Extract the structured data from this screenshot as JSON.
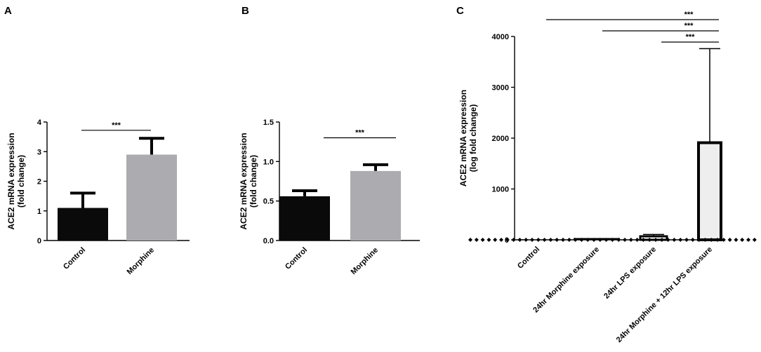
{
  "chart_data": [
    {
      "panel": "A",
      "type": "bar",
      "categories": [
        "Control",
        "Morphine"
      ],
      "values": [
        1.1,
        2.9
      ],
      "errors": [
        0.5,
        0.55
      ],
      "colors": [
        "#0a0a0a",
        "#acacb0"
      ],
      "ylabel_line1": "ACE2 mRNA expression",
      "ylabel_line2": "(fold change)",
      "ylim": [
        0,
        4
      ],
      "yticks": [
        "0",
        "1",
        "2",
        "3",
        "4"
      ],
      "yticks_values": [
        0,
        1,
        2,
        3,
        4
      ],
      "significance": [
        {
          "from": 0,
          "to": 1,
          "label": "***",
          "y": 3.72
        }
      ]
    },
    {
      "panel": "B",
      "type": "bar",
      "categories": [
        "Control",
        "Morphine"
      ],
      "values": [
        0.56,
        0.88
      ],
      "errors": [
        0.07,
        0.08
      ],
      "colors": [
        "#0a0a0a",
        "#acacb0"
      ],
      "ylabel_line1": "ACE2 mRNA expression",
      "ylabel_line2": "(fold change)",
      "ylim": [
        0,
        1.5
      ],
      "yticks": [
        "0.0",
        "0.5",
        "1.0",
        "1.5"
      ],
      "yticks_values": [
        0,
        0.5,
        1.0,
        1.5
      ],
      "significance": [
        {
          "from": 0,
          "to": 1,
          "label": "***",
          "y": 1.3
        }
      ]
    },
    {
      "panel": "C",
      "type": "bar",
      "categories": [
        "Control",
        "24hr Morphine exposure",
        "24hr LPS exposure",
        "24hr Morphine + 12hr LPS exposure"
      ],
      "values": [
        1,
        8,
        45,
        1910
      ],
      "errors": [
        0,
        5,
        60,
        1850
      ],
      "colors": [
        "#000000",
        "#000000",
        "#ffffff",
        "#eeeeee"
      ],
      "ylabel_line1": "ACE2 mRNA expression",
      "ylabel_line2": "(log fold change)",
      "ylim": [
        0,
        4000
      ],
      "yticks": [
        "0",
        "1000",
        "2000",
        "3000",
        "4000"
      ],
      "yticks_values": [
        0,
        1000,
        2000,
        3000,
        4000
      ],
      "significance": [
        {
          "from": 0,
          "to": 3,
          "label": "***",
          "y": 4430
        },
        {
          "from": 1,
          "to": 3,
          "label": "***",
          "y": 4210
        },
        {
          "from": 2,
          "to": 3,
          "label": "***",
          "y": 3990
        }
      ]
    }
  ]
}
